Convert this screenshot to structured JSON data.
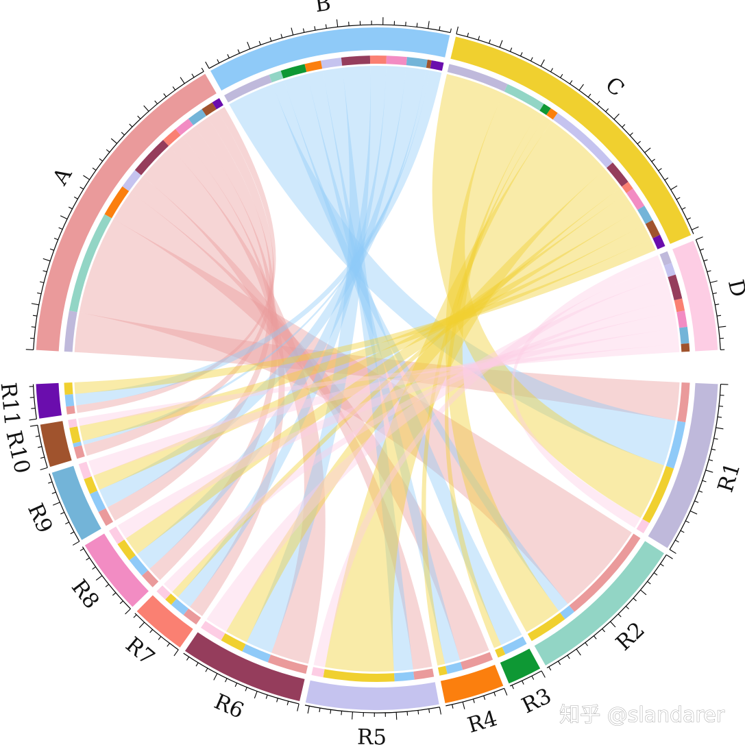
{
  "watermark": "知乎 @slandarer",
  "chart_data": {
    "type": "chord",
    "title": "",
    "colors": {
      "A": "#ea9a9b",
      "B": "#8fcaf8",
      "C": "#f0d02f",
      "D": "#fdcde4",
      "R1": "#bfb9db",
      "R2": "#92d5c5",
      "R3": "#0e9834",
      "R4": "#fb7f0e",
      "R5": "#c5c3ef",
      "R6": "#953d5c",
      "R7": "#fa8072",
      "R8": "#f28cc3",
      "R9": "#73b4d8",
      "R10": "#a0532d",
      "R11": "#6a0dad"
    },
    "sources": [
      "A",
      "B",
      "C",
      "D"
    ],
    "targets": [
      "R1",
      "R2",
      "R3",
      "R4",
      "R5",
      "R6",
      "R7",
      "R8",
      "R9",
      "R10",
      "R11"
    ],
    "matrix": [
      [
        1.0,
        2.5,
        0.0,
        0.8,
        0.5,
        1.0,
        0.4,
        0.4,
        0.4,
        0.3,
        0.2
      ],
      [
        1.2,
        0.3,
        0.6,
        0.4,
        0.5,
        0.7,
        0.4,
        0.5,
        0.5,
        0.1,
        0.3
      ],
      [
        1.5,
        1.0,
        0.2,
        0.2,
        1.8,
        0.6,
        0.2,
        0.5,
        0.4,
        0.4,
        0.3
      ],
      [
        0.3,
        0.0,
        0.0,
        0.0,
        0.3,
        0.6,
        0.3,
        0.4,
        0.4,
        0.2,
        0.0
      ]
    ]
  }
}
